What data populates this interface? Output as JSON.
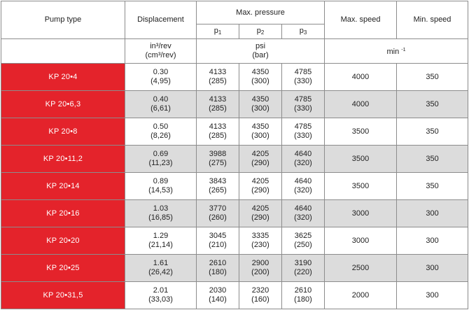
{
  "table": {
    "header": {
      "pump_type": "Pump type",
      "displacement": "Displacement",
      "max_pressure": "Max. pressure",
      "max_speed": "Max. speed",
      "min_speed": "Min. speed",
      "p1": "p",
      "p1_sub": "1",
      "p2": "p",
      "p2_sub": "2",
      "p3": "p",
      "p3_sub": "3",
      "disp_unit_1": "in³/rev",
      "disp_unit_2": "(cm³/rev)",
      "pressure_unit_1": "psi",
      "pressure_unit_2": "(bar)",
      "speed_unit": "min",
      "speed_unit_sup": "-1"
    },
    "rows": [
      {
        "type": "KP 20•4",
        "disp_in": "0.30",
        "disp_cm": "(4,95)",
        "p1_psi": "4133",
        "p1_bar": "(285)",
        "p2_psi": "4350",
        "p2_bar": "(300)",
        "p3_psi": "4785",
        "p3_bar": "(330)",
        "max_speed": "4000",
        "min_speed": "350"
      },
      {
        "type": "KP 20•6,3",
        "disp_in": "0.40",
        "disp_cm": "(6,61)",
        "p1_psi": "4133",
        "p1_bar": "(285)",
        "p2_psi": "4350",
        "p2_bar": "(300)",
        "p3_psi": "4785",
        "p3_bar": "(330)",
        "max_speed": "4000",
        "min_speed": "350"
      },
      {
        "type": "KP 20•8",
        "disp_in": "0.50",
        "disp_cm": "(8,26)",
        "p1_psi": "4133",
        "p1_bar": "(285)",
        "p2_psi": "4350",
        "p2_bar": "(300)",
        "p3_psi": "4785",
        "p3_bar": "(330)",
        "max_speed": "3500",
        "min_speed": "350"
      },
      {
        "type": "KP 20•11,2",
        "disp_in": "0.69",
        "disp_cm": "(11,23)",
        "p1_psi": "3988",
        "p1_bar": "(275)",
        "p2_psi": "4205",
        "p2_bar": "(290)",
        "p3_psi": "4640",
        "p3_bar": "(320)",
        "max_speed": "3500",
        "min_speed": "350"
      },
      {
        "type": "KP 20•14",
        "disp_in": "0.89",
        "disp_cm": "(14,53)",
        "p1_psi": "3843",
        "p1_bar": "(265)",
        "p2_psi": "4205",
        "p2_bar": "(290)",
        "p3_psi": "4640",
        "p3_bar": "(320)",
        "max_speed": "3500",
        "min_speed": "350"
      },
      {
        "type": "KP 20•16",
        "disp_in": "1.03",
        "disp_cm": "(16,85)",
        "p1_psi": "3770",
        "p1_bar": "(260)",
        "p2_psi": "4205",
        "p2_bar": "(290)",
        "p3_psi": "4640",
        "p3_bar": "(320)",
        "max_speed": "3000",
        "min_speed": "300"
      },
      {
        "type": "KP 20•20",
        "disp_in": "1.29",
        "disp_cm": "(21,14)",
        "p1_psi": "3045",
        "p1_bar": "(210)",
        "p2_psi": "3335",
        "p2_bar": "(230)",
        "p3_psi": "3625",
        "p3_bar": "(250)",
        "max_speed": "3000",
        "min_speed": "300"
      },
      {
        "type": "KP 20•25",
        "disp_in": "1.61",
        "disp_cm": "(26,42)",
        "p1_psi": "2610",
        "p1_bar": "(180)",
        "p2_psi": "2900",
        "p2_bar": "(200)",
        "p3_psi": "3190",
        "p3_bar": "(220)",
        "max_speed": "2500",
        "min_speed": "300"
      },
      {
        "type": "KP 20•31,5",
        "disp_in": "2.01",
        "disp_cm": "(33,03)",
        "p1_psi": "2030",
        "p1_bar": "(140)",
        "p2_psi": "2320",
        "p2_bar": "(160)",
        "p3_psi": "2610",
        "p3_bar": "(180)",
        "max_speed": "2000",
        "min_speed": "300"
      }
    ]
  }
}
